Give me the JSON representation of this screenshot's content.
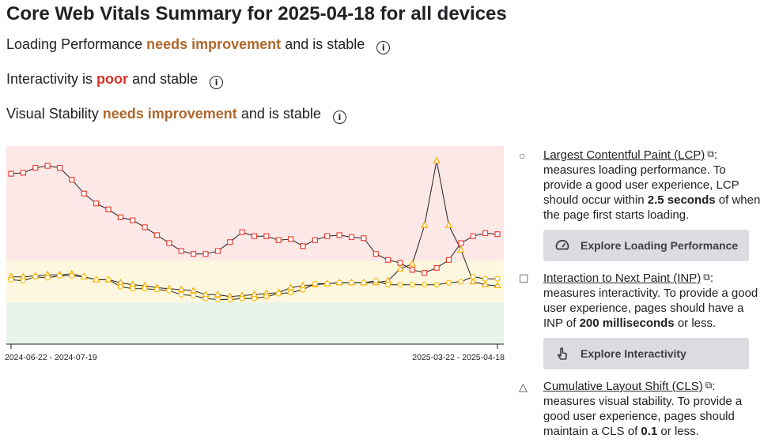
{
  "title": "Core Web Vitals Summary for 2025-04-18 for all devices",
  "statuses": [
    {
      "prefix": "Loading Performance",
      "severity": "needs improvement",
      "suffix": "and is stable"
    },
    {
      "prefix": "Interactivity is",
      "severity": "poor",
      "suffix": "and stable"
    },
    {
      "prefix": "Visual Stability",
      "severity": "needs improvement",
      "suffix": "and is stable"
    }
  ],
  "info_glyph": "i",
  "colors": {
    "needs_improvement": "#b0672b",
    "poor": "#d93025",
    "poor_band": "#fce8e6",
    "ni_band": "#fef7e0",
    "good_band": "#e6f4ea",
    "red_series": "#ea4335",
    "orange_series": "#f9ab00",
    "yellow_series": "#fbbc04"
  },
  "chart_data": {
    "type": "line",
    "xaxis_labels": [
      "2024-06-22 - 2024-07-19",
      "2025-03-22 - 2025-04-18"
    ],
    "bands": [
      "poor",
      "needs improvement",
      "good"
    ],
    "series": [
      {
        "marker": "square",
        "values": [
          0.86,
          0.865,
          0.89,
          0.9,
          0.89,
          0.83,
          0.76,
          0.71,
          0.68,
          0.64,
          0.625,
          0.59,
          0.55,
          0.51,
          0.47,
          0.455,
          0.455,
          0.47,
          0.515,
          0.565,
          0.545,
          0.545,
          0.525,
          0.53,
          0.495,
          0.525,
          0.545,
          0.55,
          0.54,
          0.535,
          0.455,
          0.425,
          0.41,
          0.375,
          0.36,
          0.385,
          0.425,
          0.51,
          0.545,
          0.56,
          0.555
        ]
      },
      {
        "marker": "triangle",
        "values": [
          0.34,
          0.34,
          0.345,
          0.35,
          0.35,
          0.355,
          0.34,
          0.325,
          0.325,
          0.31,
          0.3,
          0.295,
          0.285,
          0.28,
          0.275,
          0.27,
          0.25,
          0.25,
          0.24,
          0.245,
          0.25,
          0.255,
          0.26,
          0.285,
          0.295,
          0.3,
          0.305,
          0.31,
          0.31,
          0.31,
          0.31,
          0.32,
          0.38,
          0.405,
          0.6,
          0.925,
          0.6,
          0.475,
          0.315,
          0.3,
          0.295
        ]
      },
      {
        "marker": "circle",
        "values": [
          0.325,
          0.32,
          0.34,
          0.335,
          0.345,
          0.345,
          0.34,
          0.325,
          0.325,
          0.29,
          0.28,
          0.28,
          0.275,
          0.27,
          0.25,
          0.245,
          0.23,
          0.225,
          0.225,
          0.23,
          0.23,
          0.24,
          0.255,
          0.26,
          0.275,
          0.305,
          0.305,
          0.31,
          0.31,
          0.31,
          0.32,
          0.3,
          0.3,
          0.3,
          0.3,
          0.3,
          0.31,
          0.315,
          0.34,
          0.33,
          0.33
        ]
      }
    ]
  },
  "legend": [
    {
      "marker": "○",
      "link": "Largest Contentful Paint (LCP)",
      "ext": "⧉",
      "desc1": ": measures loading performance. To provide a good user experience, LCP should occur within ",
      "bold": "2.5 seconds",
      "desc2": " of when the page first starts loading."
    },
    {
      "marker": "☐",
      "link": "Interaction to Next Paint (INP)",
      "ext": "⧉",
      "desc1": ": measures interactivity. To provide a good user experience, pages should have a INP of ",
      "bold": "200 milliseconds",
      "desc2": " or less."
    },
    {
      "marker": "△",
      "link": "Cumulative Layout Shift (CLS)",
      "ext": "⧉",
      "desc1": ": measures visual stability. To provide a good user experience, pages should maintain a CLS of ",
      "bold": "0.1",
      "desc2": " or less."
    }
  ],
  "buttons": {
    "loading": "Explore Loading Performance",
    "interactivity": "Explore Interactivity"
  },
  "icons": {
    "loading": "speedometer-icon",
    "interactivity": "touch-hand-icon",
    "info": "info-icon",
    "external": "external-link-icon"
  }
}
